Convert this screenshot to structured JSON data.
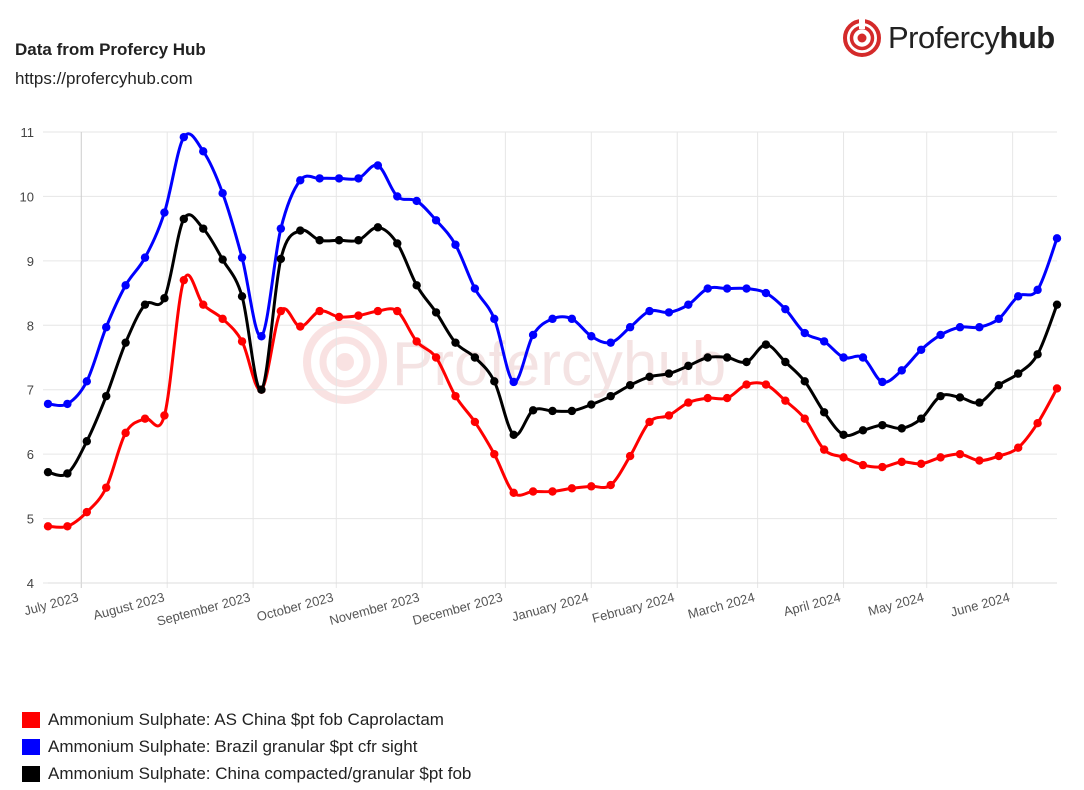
{
  "header": {
    "title": "Data from Profercy Hub",
    "url": "https://profercyhub.com"
  },
  "logo": {
    "text_light": "Profercy",
    "text_bold": "hub",
    "brand_color": "#d42a2a"
  },
  "watermark": {
    "text": "Profercyhub"
  },
  "chart_data": {
    "type": "line",
    "title": "",
    "xlabel": "",
    "ylabel": "",
    "ylim": [
      4,
      11
    ],
    "yticks": [
      4,
      5,
      6,
      7,
      8,
      9,
      10,
      11
    ],
    "grid": true,
    "legend_position": "bottom-left",
    "x_start": "2023-06-19",
    "x_step_days": 7,
    "month_labels": [
      {
        "label": "July 2023",
        "date": "2023-07-01"
      },
      {
        "label": "August 2023",
        "date": "2023-08-01"
      },
      {
        "label": "September 2023",
        "date": "2023-09-01"
      },
      {
        "label": "October 2023",
        "date": "2023-10-01"
      },
      {
        "label": "November 2023",
        "date": "2023-11-01"
      },
      {
        "label": "December 2023",
        "date": "2023-12-01"
      },
      {
        "label": "January 2024",
        "date": "2024-01-01"
      },
      {
        "label": "February 2024",
        "date": "2024-02-01"
      },
      {
        "label": "March 2024",
        "date": "2024-03-01"
      },
      {
        "label": "April 2024",
        "date": "2024-04-01"
      },
      {
        "label": "May 2024",
        "date": "2024-05-01"
      },
      {
        "label": "June 2024",
        "date": "2024-06-01"
      }
    ],
    "series": [
      {
        "name": "Ammonium Sulphate: AS China $pt fob Caprolactam",
        "color": "#ff0000",
        "values": [
          4.88,
          4.88,
          5.1,
          5.48,
          6.33,
          6.55,
          6.6,
          8.7,
          8.32,
          8.1,
          7.75,
          7.0,
          8.22,
          7.98,
          8.22,
          8.13,
          8.15,
          8.22,
          8.22,
          7.75,
          7.5,
          6.9,
          6.5,
          6.0,
          5.4,
          5.42,
          5.42,
          5.47,
          5.5,
          5.52,
          5.97,
          6.5,
          6.6,
          6.8,
          6.87,
          6.87,
          7.08,
          7.08,
          6.83,
          6.55,
          6.07,
          5.95,
          5.83,
          5.8,
          5.88,
          5.85,
          5.95,
          6.0,
          5.9,
          5.97,
          6.1,
          6.48,
          7.02
        ]
      },
      {
        "name": "Ammonium Sulphate: Brazil granular $pt cfr sight",
        "color": "#0000ff",
        "values": [
          6.78,
          6.78,
          7.13,
          7.97,
          8.62,
          9.05,
          9.75,
          10.92,
          10.7,
          10.05,
          9.05,
          7.83,
          9.5,
          10.25,
          10.28,
          10.28,
          10.28,
          10.48,
          10.0,
          9.93,
          9.63,
          9.25,
          8.57,
          8.1,
          7.12,
          7.85,
          8.1,
          8.1,
          7.83,
          7.73,
          7.97,
          8.22,
          8.2,
          8.32,
          8.57,
          8.57,
          8.57,
          8.5,
          8.25,
          7.88,
          7.75,
          7.5,
          7.5,
          7.12,
          7.3,
          7.62,
          7.85,
          7.97,
          7.97,
          8.1,
          8.45,
          8.55,
          9.35
        ]
      },
      {
        "name": "Ammonium Sulphate: China compacted/granular $pt fob",
        "color": "#000000",
        "values": [
          5.72,
          5.7,
          6.2,
          6.9,
          7.73,
          8.32,
          8.42,
          9.65,
          9.5,
          9.02,
          8.45,
          7.0,
          9.03,
          9.47,
          9.32,
          9.32,
          9.32,
          9.52,
          9.27,
          8.62,
          8.2,
          7.73,
          7.5,
          7.13,
          6.3,
          6.68,
          6.67,
          6.67,
          6.77,
          6.9,
          7.07,
          7.2,
          7.25,
          7.37,
          7.5,
          7.5,
          7.43,
          7.7,
          7.43,
          7.13,
          6.65,
          6.3,
          6.37,
          6.45,
          6.4,
          6.55,
          6.9,
          6.88,
          6.8,
          7.07,
          7.25,
          7.55,
          8.32
        ]
      }
    ]
  }
}
